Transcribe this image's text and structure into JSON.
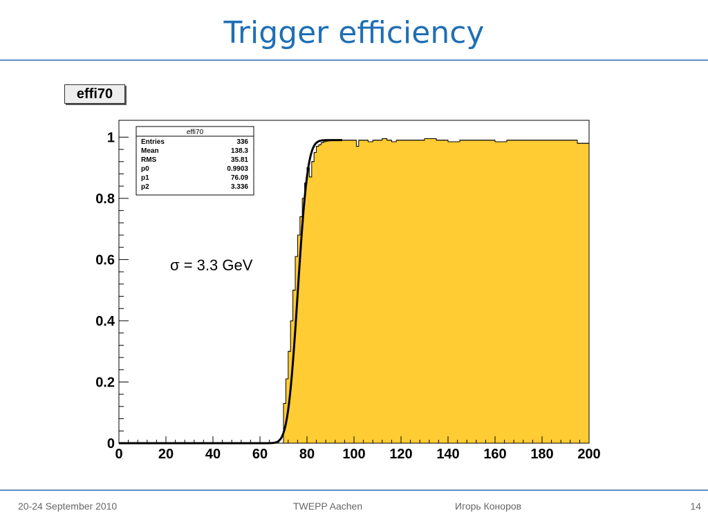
{
  "slide": {
    "title": "Trigger efficiency",
    "footer_date": "20-24 September 2010",
    "footer_event": "TWEPP  Aachen",
    "footer_author": "Игорь Коноров",
    "page_number": "14"
  },
  "histogram_label": "effi70",
  "stats_box": {
    "title": "effi70",
    "rows": [
      {
        "name": "Entries",
        "value": "336"
      },
      {
        "name": "Mean",
        "value": "138.3"
      },
      {
        "name": "RMS",
        "value": "35.81"
      },
      {
        "name": "p0",
        "value": "0.9903"
      },
      {
        "name": "p1",
        "value": "76.09"
      },
      {
        "name": "p2",
        "value": "3.336"
      }
    ]
  },
  "annotation": "σ = 3.3 GeV",
  "chart_data": {
    "type": "area",
    "title": "",
    "xlabel": "",
    "ylabel": "",
    "xlim": [
      0,
      200
    ],
    "ylim": [
      0,
      1.0
    ],
    "x_ticks": [
      0,
      20,
      40,
      60,
      80,
      100,
      120,
      140,
      160,
      180,
      200
    ],
    "y_ticks": [
      0,
      0.2,
      0.4,
      0.6,
      0.8,
      1
    ],
    "grid": false,
    "colors": {
      "fill": "#ffcc33",
      "line": "#000000",
      "frame": "#000000"
    },
    "histogram": {
      "x": [
        70,
        71,
        72,
        73,
        74,
        75,
        76,
        77,
        78,
        79,
        80,
        81,
        82,
        83,
        84,
        85,
        86,
        87,
        88,
        89,
        90,
        92,
        94,
        96,
        98,
        100,
        101,
        102,
        104,
        106,
        108,
        110,
        112,
        114,
        116,
        118,
        120,
        125,
        130,
        135,
        140,
        145,
        150,
        155,
        160,
        165,
        170,
        175,
        180,
        185,
        190,
        195
      ],
      "y": [
        0.13,
        0.21,
        0.3,
        0.4,
        0.5,
        0.61,
        0.68,
        0.74,
        0.8,
        0.85,
        0.9,
        0.87,
        0.92,
        0.95,
        0.97,
        0.975,
        0.982,
        0.985,
        0.987,
        0.988,
        0.99,
        0.99,
        0.99,
        0.99,
        0.99,
        0.99,
        0.97,
        0.99,
        0.99,
        0.985,
        0.99,
        0.99,
        0.995,
        0.99,
        0.985,
        0.99,
        0.99,
        0.99,
        0.995,
        0.99,
        0.985,
        0.99,
        0.99,
        0.99,
        0.985,
        0.99,
        0.99,
        0.99,
        0.99,
        0.99,
        0.99,
        0.98
      ]
    },
    "fit": {
      "function": "p0 * 0.5 * (1 + erf((x - p1) / (sqrt(2) * p2)))",
      "p0": 0.9903,
      "p1": 76.09,
      "p2": 3.336,
      "x_range": [
        0,
        200
      ]
    }
  }
}
